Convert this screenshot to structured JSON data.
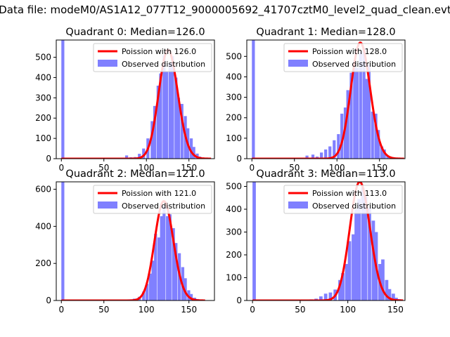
{
  "page": {
    "suptitle": "Data file: modeM0/AS1A12_077T12_9000005692_41707cztM0_level2_quad_clean.evt"
  },
  "colors": {
    "bar": "#8080ff",
    "poisson": "#ff0000",
    "axis": "#000000",
    "background": "#ffffff"
  },
  "chart_data": [
    {
      "type": "bar",
      "title": "Quadrant 0: Median=126.0",
      "legend": {
        "position": "upper-right",
        "entries": [
          "Poission with 126.0",
          "Observed distribution"
        ]
      },
      "median": 126.0,
      "xlim": [
        -6,
        180
      ],
      "ylim": [
        0,
        585
      ],
      "xticks": [
        0,
        50,
        100,
        150
      ],
      "yticks": [
        0,
        100,
        200,
        300,
        400,
        500
      ],
      "bin_width": 3.5,
      "bins": [
        [
          0,
          585
        ],
        [
          70,
          5
        ],
        [
          75,
          16
        ],
        [
          80,
          7
        ],
        [
          85,
          8
        ],
        [
          90,
          24
        ],
        [
          95,
          50
        ],
        [
          100,
          100
        ],
        [
          105,
          185
        ],
        [
          108,
          260
        ],
        [
          112,
          360
        ],
        [
          115,
          420
        ],
        [
          119,
          510
        ],
        [
          122,
          430
        ],
        [
          126,
          470
        ],
        [
          129,
          505
        ],
        [
          133,
          400
        ],
        [
          136,
          300
        ],
        [
          140,
          270
        ],
        [
          144,
          210
        ],
        [
          147,
          150
        ],
        [
          151,
          100
        ],
        [
          154,
          58
        ],
        [
          158,
          25
        ],
        [
          161,
          10
        ],
        [
          165,
          5
        ]
      ]
    },
    {
      "type": "bar",
      "title": "Quadrant 1: Median=128.0",
      "legend": {
        "position": "upper-right",
        "entries": [
          "Poission with 128.0",
          "Observed distribution"
        ]
      },
      "median": 128.0,
      "xlim": [
        -6,
        180
      ],
      "ylim": [
        0,
        580
      ],
      "xticks": [
        0,
        50,
        100,
        150
      ],
      "yticks": [
        0,
        100,
        200,
        300,
        400,
        500
      ],
      "bin_width": 3.5,
      "bins": [
        [
          0,
          580
        ],
        [
          57,
          5
        ],
        [
          63,
          15
        ],
        [
          70,
          20
        ],
        [
          75,
          10
        ],
        [
          80,
          30
        ],
        [
          85,
          45
        ],
        [
          90,
          60
        ],
        [
          95,
          90
        ],
        [
          100,
          120
        ],
        [
          104,
          220
        ],
        [
          108,
          250
        ],
        [
          111,
          335
        ],
        [
          115,
          420
        ],
        [
          119,
          480
        ],
        [
          122,
          445
        ],
        [
          126,
          520
        ],
        [
          130,
          540
        ],
        [
          133,
          390
        ],
        [
          136,
          460
        ],
        [
          140,
          230
        ],
        [
          144,
          220
        ],
        [
          147,
          140
        ],
        [
          151,
          60
        ],
        [
          154,
          45
        ],
        [
          158,
          15
        ],
        [
          162,
          8
        ]
      ]
    },
    {
      "type": "bar",
      "title": "Quadrant 2: Median=121.0",
      "legend": {
        "position": "upper-right",
        "entries": [
          "Poission with 121.0",
          "Observed distribution"
        ]
      },
      "median": 121.0,
      "xlim": [
        -6,
        180
      ],
      "ylim": [
        0,
        640
      ],
      "xticks": [
        0,
        50,
        100,
        150
      ],
      "yticks": [
        0,
        200,
        400,
        600
      ],
      "bin_width": 3.5,
      "bins": [
        [
          0,
          640
        ],
        [
          70,
          5
        ],
        [
          78,
          6
        ],
        [
          84,
          10
        ],
        [
          90,
          20
        ],
        [
          95,
          48
        ],
        [
          99,
          90
        ],
        [
          103,
          145
        ],
        [
          106,
          215
        ],
        [
          109,
          360
        ],
        [
          113,
          340
        ],
        [
          116,
          455
        ],
        [
          119,
          510
        ],
        [
          123,
          455
        ],
        [
          126,
          465
        ],
        [
          130,
          390
        ],
        [
          133,
          310
        ],
        [
          137,
          255
        ],
        [
          141,
          180
        ],
        [
          144,
          120
        ],
        [
          148,
          55
        ],
        [
          151,
          35
        ],
        [
          155,
          15
        ],
        [
          158,
          8
        ]
      ]
    },
    {
      "type": "bar",
      "title": "Quadrant 3: Median=113.0",
      "legend": {
        "position": "upper-right",
        "entries": [
          "Poission with 113.0",
          "Observed distribution"
        ]
      },
      "median": 113.0,
      "xlim": [
        -6,
        160
      ],
      "ylim": [
        0,
        520
      ],
      "xticks": [
        0,
        50,
        100,
        150
      ],
      "yticks": [
        0,
        100,
        200,
        300,
        400,
        500
      ],
      "bin_width": 3.5,
      "bins": [
        [
          0,
          520
        ],
        [
          60,
          5
        ],
        [
          65,
          8
        ],
        [
          70,
          18
        ],
        [
          75,
          30
        ],
        [
          80,
          35
        ],
        [
          85,
          48
        ],
        [
          90,
          90
        ],
        [
          93,
          120
        ],
        [
          97,
          160
        ],
        [
          100,
          260
        ],
        [
          104,
          290
        ],
        [
          107,
          400
        ],
        [
          110,
          445
        ],
        [
          114,
          495
        ],
        [
          117,
          455
        ],
        [
          121,
          405
        ],
        [
          125,
          350
        ],
        [
          128,
          300
        ],
        [
          132,
          160
        ],
        [
          135,
          180
        ],
        [
          139,
          90
        ],
        [
          142,
          50
        ],
        [
          146,
          30
        ],
        [
          149,
          12
        ],
        [
          152,
          6
        ]
      ]
    }
  ]
}
